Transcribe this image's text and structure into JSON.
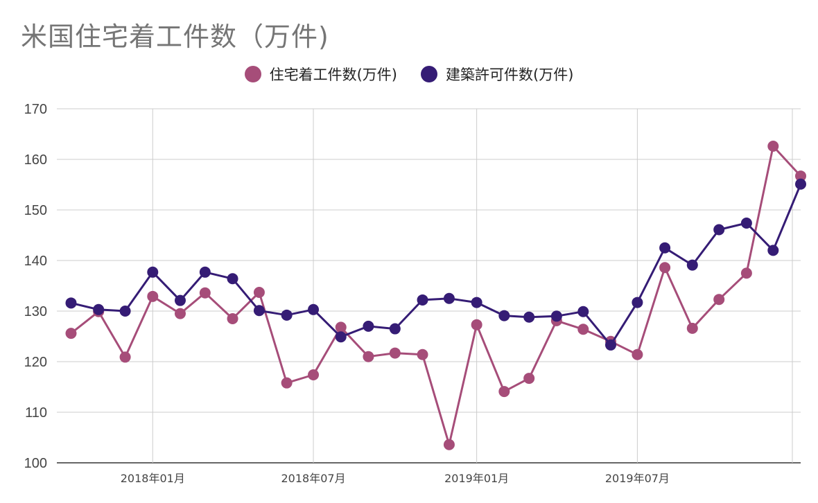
{
  "chart_data": {
    "type": "line",
    "title": "米国住宅着工件数（万件)",
    "ylim": [
      100,
      170
    ],
    "yticks": [
      "100",
      "110",
      "120",
      "130",
      "140",
      "150",
      "160",
      "170"
    ],
    "xlim": [
      "2017-09-15",
      "2020-01-01"
    ],
    "xticks": [
      {
        "date": "2018-01-01",
        "label": "2018年01月"
      },
      {
        "date": "2018-07-01",
        "label": "2018年07月"
      },
      {
        "date": "2019-01-01",
        "label": "2019年01月"
      },
      {
        "date": "2019-07-01",
        "label": "2019年07月"
      }
    ],
    "grid": true,
    "legend": "top-center",
    "x": [
      "2017-10-01",
      "2017-11-01",
      "2017-12-01",
      "2018-01-01",
      "2018-02-01",
      "2018-03-01",
      "2018-04-01",
      "2018-05-01",
      "2018-06-01",
      "2018-07-01",
      "2018-08-01",
      "2018-09-01",
      "2018-10-01",
      "2018-11-01",
      "2018-12-01",
      "2019-01-01",
      "2019-02-01",
      "2019-03-01",
      "2019-04-01",
      "2019-05-01",
      "2019-06-01",
      "2019-07-01",
      "2019-08-01",
      "2019-09-01",
      "2019-10-01",
      "2019-11-01",
      "2019-12-01",
      "2020-01-01"
    ],
    "series": [
      {
        "name": "住宅着工件数(万件)",
        "color": "#a64d79",
        "values": [
          125.6,
          129.9,
          120.9,
          132.9,
          129.5,
          133.6,
          128.5,
          133.7,
          115.8,
          117.4,
          126.8,
          121.0,
          121.7,
          121.4,
          103.6,
          127.3,
          114.1,
          116.7,
          128.1,
          126.4,
          124.0,
          121.4,
          138.6,
          126.6,
          132.3,
          137.5,
          162.6,
          156.7
        ]
      },
      {
        "name": "建築許可件数(万件)",
        "color": "#351c75",
        "values": [
          131.6,
          130.3,
          130.0,
          137.7,
          132.1,
          137.7,
          136.4,
          130.1,
          129.2,
          130.3,
          124.9,
          127.0,
          126.5,
          132.2,
          132.5,
          131.7,
          129.1,
          128.8,
          129.0,
          129.9,
          123.3,
          131.7,
          142.5,
          139.1,
          146.1,
          147.4,
          142.0,
          155.1
        ]
      }
    ]
  }
}
